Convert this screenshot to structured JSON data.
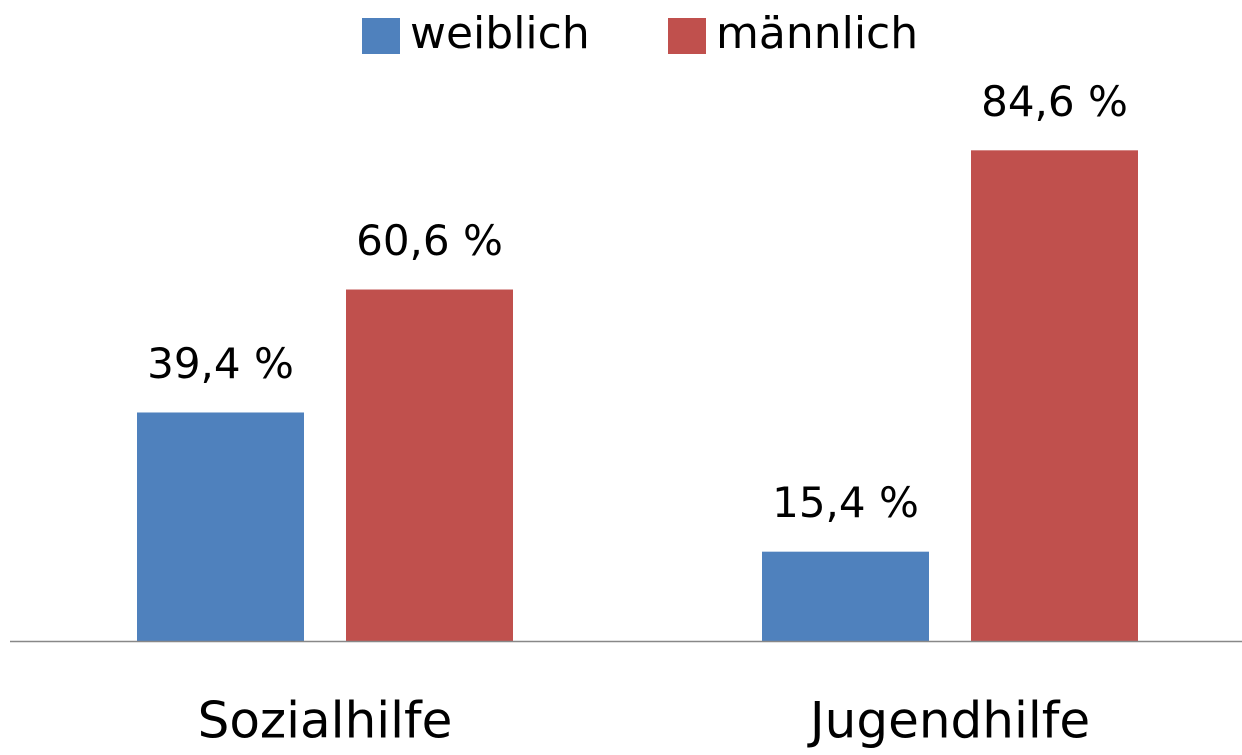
{
  "chart_data": {
    "type": "bar",
    "categories": [
      "Sozialhilfe",
      "Jugendhilfe"
    ],
    "series": [
      {
        "name": "weiblich",
        "color": "#4f81bd",
        "values": [
          39.4,
          15.4
        ],
        "value_labels": [
          "39,4 %",
          "15,4 %"
        ]
      },
      {
        "name": "männlich",
        "color": "#c0504d",
        "values": [
          60.6,
          84.6
        ],
        "value_labels": [
          "60,6 %",
          "84,6 %"
        ]
      }
    ],
    "legend": "top"
  }
}
